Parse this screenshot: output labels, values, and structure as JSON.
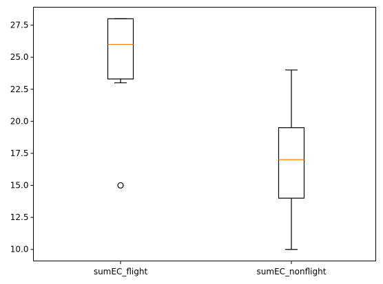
{
  "chart_data": {
    "type": "box",
    "categories": [
      "sumEC_flight",
      "sumEC_nonflight"
    ],
    "ylim": [
      9.1,
      28.9
    ],
    "yticks": [
      10.0,
      12.5,
      15.0,
      17.5,
      20.0,
      22.5,
      25.0,
      27.5
    ],
    "ytick_labels": [
      "10.0",
      "12.5",
      "15.0",
      "17.5",
      "20.0",
      "22.5",
      "25.0",
      "27.5"
    ],
    "grid": false,
    "boxes": [
      {
        "name": "sumEC_flight",
        "whisker_low": 23.0,
        "q1": 23.3,
        "median": 26.0,
        "q3": 28.0,
        "whisker_high": 28.0,
        "outliers": [
          15.0
        ]
      },
      {
        "name": "sumEC_nonflight",
        "whisker_low": 10.0,
        "q1": 14.0,
        "median": 17.0,
        "q3": 19.5,
        "whisker_high": 24.0,
        "outliers": []
      }
    ],
    "colors": {
      "box": "#000000",
      "median": "#ff7f0e"
    }
  }
}
